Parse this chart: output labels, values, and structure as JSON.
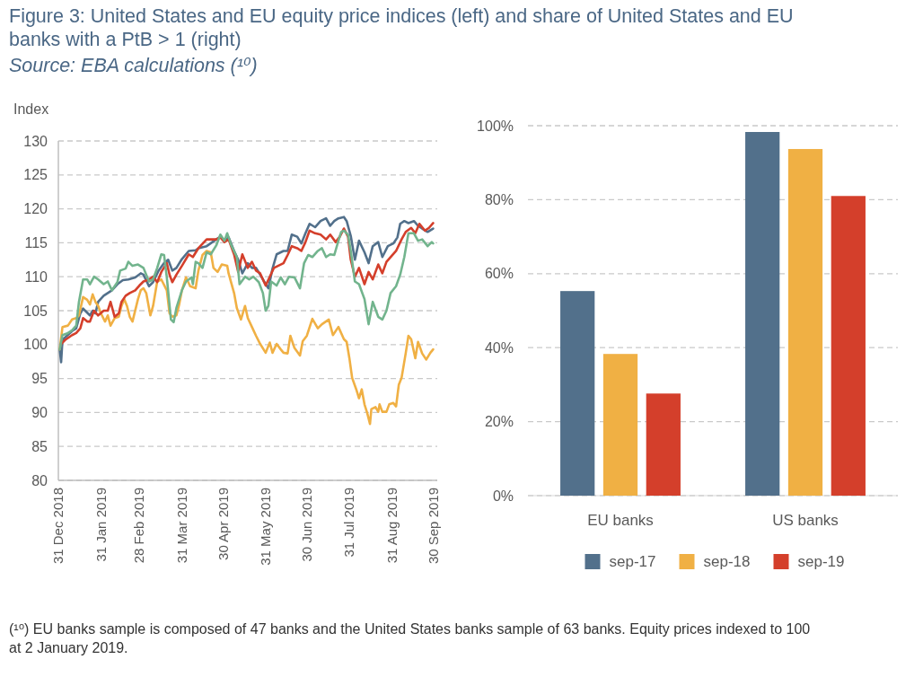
{
  "chart_data": [
    {
      "type": "line",
      "title": "Figure 3: United States and EU equity price indices (left) and share of United States and EU banks with a PtB > 1 (right)",
      "subtitle": "Source: EBA calculations (¹⁰)",
      "ylabel": "Index",
      "annotations": [
        "(¹⁰) EU banks sample is composed of 47 banks and the United States banks sample of 63 banks. Equity prices indexed to 100 at 2 January 2019."
      ],
      "xlim": [
        "2018-12-31",
        "2019-10-03"
      ],
      "xticks": [
        {
          "value": "2018-12-31",
          "label": "31 Dec 2018"
        },
        {
          "value": "2019-01-31",
          "label": "31 Jan 2019"
        },
        {
          "value": "2019-02-28",
          "label": "28 Feb 2019"
        },
        {
          "value": "2019-03-31",
          "label": "31 Mar 2019"
        },
        {
          "value": "2019-04-30",
          "label": "30 Apr 2019"
        },
        {
          "value": "2019-05-31",
          "label": "31 May 2019"
        },
        {
          "value": "2019-06-30",
          "label": "30 Jun 2019"
        },
        {
          "value": "2019-07-31",
          "label": "31 Jul 2019"
        },
        {
          "value": "2019-08-31",
          "label": "31 Aug 2019"
        },
        {
          "value": "2019-09-30",
          "label": "30 Sep 2019"
        }
      ],
      "ylim": [
        80,
        130
      ],
      "yticks": [
        80,
        85,
        90,
        95,
        100,
        105,
        110,
        115,
        120,
        125,
        130
      ],
      "grid": "y",
      "series": [
        {
          "color": "#52708b",
          "x": [
            "2019-01-01",
            "2019-01-02",
            "2019-01-03",
            "2019-01-10",
            "2019-01-13",
            "2019-01-16",
            "2019-01-18",
            "2019-01-21",
            "2019-01-23",
            "2019-01-25",
            "2019-01-27",
            "2019-01-29",
            "2019-02-02",
            "2019-02-05",
            "2019-02-08",
            "2019-02-12",
            "2019-02-16",
            "2019-02-20",
            "2019-02-25",
            "2019-03-01",
            "2019-03-03",
            "2019-03-07",
            "2019-03-10",
            "2019-03-14",
            "2019-03-18",
            "2019-03-21",
            "2019-03-24",
            "2019-03-27",
            "2019-03-31",
            "2019-04-05",
            "2019-04-10",
            "2019-04-12",
            "2019-04-18",
            "2019-04-25",
            "2019-04-28",
            "2019-05-01",
            "2019-05-04",
            "2019-05-08",
            "2019-05-11",
            "2019-05-14",
            "2019-05-18",
            "2019-05-21",
            "2019-05-24",
            "2019-05-27",
            "2019-05-31",
            "2019-06-02",
            "2019-06-05",
            "2019-06-08",
            "2019-06-13",
            "2019-06-16",
            "2019-06-19",
            "2019-06-23",
            "2019-06-26",
            "2019-06-29",
            "2019-07-02",
            "2019-07-06",
            "2019-07-10",
            "2019-07-14",
            "2019-07-17",
            "2019-07-20",
            "2019-07-23",
            "2019-07-27",
            "2019-07-29",
            "2019-08-01",
            "2019-08-04",
            "2019-08-07",
            "2019-08-11",
            "2019-08-14",
            "2019-08-17",
            "2019-08-21",
            "2019-08-24",
            "2019-08-28",
            "2019-09-01",
            "2019-09-04",
            "2019-09-06",
            "2019-09-09",
            "2019-09-12",
            "2019-09-16",
            "2019-09-19",
            "2019-09-22",
            "2019-09-26",
            "2019-09-30"
          ],
          "values": [
            99.3,
            97.4,
            100.7,
            102.0,
            102.4,
            104.6,
            105.3,
            104.7,
            104.3,
            105.0,
            104.6,
            106.3,
            107.2,
            107.6,
            108.0,
            108.9,
            109.5,
            109.6,
            109.9,
            110.5,
            110.3,
            108.6,
            109.2,
            110.9,
            112.0,
            112.5,
            110.9,
            111.3,
            112.6,
            113.8,
            113.9,
            114.2,
            114.5,
            115.5,
            115.9,
            115.3,
            115.8,
            113.8,
            112.5,
            110.5,
            112.0,
            111.3,
            111.3,
            110.3,
            108.9,
            108.3,
            111.2,
            113.3,
            113.8,
            113.8,
            116.2,
            115.9,
            114.9,
            116.4,
            117.8,
            117.3,
            118.2,
            118.6,
            117.5,
            118.2,
            118.6,
            118.8,
            118.2,
            116.0,
            112.5,
            115.3,
            113.6,
            112.0,
            114.5,
            115.1,
            112.9,
            114.5,
            114.9,
            115.8,
            117.8,
            118.2,
            117.9,
            118.2,
            117.5,
            117.1,
            116.6,
            117.1
          ]
        },
        {
          "color": "#f0b044",
          "x": [
            "2019-01-01",
            "2019-01-03",
            "2019-01-07",
            "2019-01-10",
            "2019-01-13",
            "2019-01-15",
            "2019-01-18",
            "2019-01-21",
            "2019-01-23",
            "2019-01-25",
            "2019-01-27",
            "2019-01-29",
            "2019-01-31",
            "2019-02-03",
            "2019-02-05",
            "2019-02-07",
            "2019-02-10",
            "2019-02-13",
            "2019-02-15",
            "2019-02-17",
            "2019-02-19",
            "2019-02-21",
            "2019-02-23",
            "2019-02-27",
            "2019-03-01",
            "2019-03-03",
            "2019-03-05",
            "2019-03-08",
            "2019-03-10",
            "2019-03-13",
            "2019-03-16",
            "2019-03-20",
            "2019-03-22",
            "2019-03-24",
            "2019-03-27",
            "2019-03-29",
            "2019-03-31",
            "2019-04-03",
            "2019-04-06",
            "2019-04-10",
            "2019-04-12",
            "2019-04-15",
            "2019-04-18",
            "2019-04-21",
            "2019-04-23",
            "2019-04-26",
            "2019-04-29",
            "2019-05-03",
            "2019-05-04",
            "2019-05-08",
            "2019-05-10",
            "2019-05-13",
            "2019-05-16",
            "2019-05-18",
            "2019-05-21",
            "2019-05-24",
            "2019-05-27",
            "2019-05-31",
            "2019-06-03",
            "2019-06-05",
            "2019-06-08",
            "2019-06-11",
            "2019-06-13",
            "2019-06-16",
            "2019-06-18",
            "2019-06-21",
            "2019-06-25",
            "2019-06-27",
            "2019-06-30",
            "2019-07-04",
            "2019-07-08",
            "2019-07-11",
            "2019-07-16",
            "2019-07-19",
            "2019-07-23",
            "2019-07-27",
            "2019-07-29",
            "2019-07-31",
            "2019-08-02",
            "2019-08-05",
            "2019-08-07",
            "2019-08-09",
            "2019-08-11",
            "2019-08-13",
            "2019-08-15",
            "2019-08-16",
            "2019-08-19",
            "2019-08-21",
            "2019-08-22",
            "2019-08-24",
            "2019-08-27",
            "2019-08-29",
            "2019-09-01",
            "2019-09-03",
            "2019-09-05",
            "2019-09-07",
            "2019-09-10",
            "2019-09-12",
            "2019-09-14",
            "2019-09-17",
            "2019-09-19",
            "2019-09-22",
            "2019-09-25",
            "2019-09-28",
            "2019-09-30"
          ],
          "values": [
            99.3,
            102.6,
            102.8,
            103.7,
            103.9,
            104.3,
            107.0,
            106.6,
            105.9,
            107.4,
            106.3,
            105.7,
            104.6,
            103.4,
            104.3,
            102.8,
            103.9,
            104.1,
            105.7,
            106.7,
            105.7,
            104.1,
            103.4,
            106.7,
            108.0,
            108.3,
            107.6,
            104.3,
            105.7,
            109.3,
            109.6,
            108.0,
            104.6,
            104.1,
            104.3,
            105.9,
            108.0,
            109.9,
            108.6,
            108.3,
            110.9,
            113.2,
            113.8,
            113.6,
            111.3,
            110.7,
            111.8,
            111.6,
            110.5,
            107.6,
            105.4,
            103.7,
            105.7,
            103.9,
            102.6,
            101.3,
            100.1,
            98.8,
            100.3,
            98.8,
            100.1,
            99.3,
            98.8,
            98.7,
            101.3,
            99.5,
            98.4,
            100.5,
            101.3,
            103.8,
            102.4,
            103.0,
            103.7,
            101.4,
            102.6,
            100.8,
            100.4,
            98.0,
            95.1,
            93.4,
            92.1,
            93.4,
            91.2,
            89.9,
            88.3,
            90.5,
            90.8,
            90.1,
            91.2,
            90.1,
            90.1,
            91.2,
            91.4,
            90.9,
            94.1,
            95.1,
            98.7,
            101.3,
            100.8,
            98.0,
            100.4,
            98.7,
            97.8,
            98.8,
            99.3
          ]
        },
        {
          "color": "#d43f2b",
          "x": [
            "2019-01-02",
            "2019-01-05",
            "2019-01-10",
            "2019-01-13",
            "2019-01-16",
            "2019-01-18",
            "2019-01-21",
            "2019-01-23",
            "2019-01-26",
            "2019-01-29",
            "2019-02-02",
            "2019-02-05",
            "2019-02-07",
            "2019-02-10",
            "2019-02-13",
            "2019-02-15",
            "2019-02-18",
            "2019-02-21",
            "2019-02-25",
            "2019-02-28",
            "2019-03-03",
            "2019-03-07",
            "2019-03-10",
            "2019-03-13",
            "2019-03-16",
            "2019-03-20",
            "2019-03-22",
            "2019-03-24",
            "2019-03-27",
            "2019-03-31",
            "2019-04-05",
            "2019-04-08",
            "2019-04-12",
            "2019-04-18",
            "2019-04-25",
            "2019-04-28",
            "2019-05-01",
            "2019-05-04",
            "2019-05-08",
            "2019-05-11",
            "2019-05-14",
            "2019-05-18",
            "2019-05-21",
            "2019-05-24",
            "2019-05-27",
            "2019-05-31",
            "2019-06-03",
            "2019-06-06",
            "2019-06-09",
            "2019-06-13",
            "2019-06-16",
            "2019-06-19",
            "2019-06-23",
            "2019-06-26",
            "2019-06-29",
            "2019-07-02",
            "2019-07-06",
            "2019-07-10",
            "2019-07-14",
            "2019-07-17",
            "2019-07-21",
            "2019-07-24",
            "2019-07-27",
            "2019-07-30",
            "2019-08-01",
            "2019-08-04",
            "2019-08-07",
            "2019-08-11",
            "2019-08-14",
            "2019-08-17",
            "2019-08-21",
            "2019-08-24",
            "2019-08-27",
            "2019-08-30",
            "2019-09-03",
            "2019-09-07",
            "2019-09-10",
            "2019-09-14",
            "2019-09-17",
            "2019-09-20",
            "2019-09-24",
            "2019-09-27",
            "2019-09-30"
          ],
          "values": [
            100.1,
            100.7,
            101.4,
            101.7,
            102.4,
            103.9,
            103.4,
            103.4,
            105.0,
            104.3,
            105.0,
            105.0,
            106.3,
            104.1,
            104.6,
            106.3,
            107.2,
            107.6,
            108.0,
            108.7,
            109.3,
            109.6,
            110.0,
            109.2,
            110.7,
            112.0,
            110.3,
            109.2,
            110.3,
            111.6,
            113.3,
            112.9,
            114.2,
            115.5,
            115.5,
            115.8,
            115.1,
            115.5,
            113.3,
            110.7,
            113.3,
            111.3,
            112.2,
            110.9,
            110.5,
            108.7,
            110.0,
            111.3,
            111.6,
            112.0,
            113.2,
            114.5,
            114.2,
            113.8,
            115.1,
            116.8,
            116.4,
            116.2,
            115.5,
            116.2,
            115.1,
            115.9,
            117.1,
            115.9,
            112.5,
            110.0,
            111.3,
            108.9,
            110.7,
            109.6,
            111.8,
            110.5,
            112.2,
            112.9,
            113.8,
            115.5,
            116.6,
            117.2,
            116.4,
            117.8,
            116.8,
            117.2,
            117.9
          ]
        },
        {
          "color": "#72b48d",
          "x": [
            "2019-01-01",
            "2019-01-03",
            "2019-01-07",
            "2019-01-10",
            "2019-01-13",
            "2019-01-15",
            "2019-01-18",
            "2019-01-21",
            "2019-01-23",
            "2019-01-26",
            "2019-01-29",
            "2019-02-02",
            "2019-02-05",
            "2019-02-08",
            "2019-02-12",
            "2019-02-14",
            "2019-02-18",
            "2019-02-20",
            "2019-02-23",
            "2019-02-27",
            "2019-03-03",
            "2019-03-07",
            "2019-03-10",
            "2019-03-13",
            "2019-03-16",
            "2019-03-18",
            "2019-03-20",
            "2019-03-23",
            "2019-03-25",
            "2019-03-27",
            "2019-03-31",
            "2019-04-03",
            "2019-04-07",
            "2019-04-08",
            "2019-04-10",
            "2019-04-12",
            "2019-04-15",
            "2019-04-18",
            "2019-04-21",
            "2019-04-25",
            "2019-04-28",
            "2019-05-01",
            "2019-05-03",
            "2019-05-06",
            "2019-05-10",
            "2019-05-12",
            "2019-05-16",
            "2019-05-19",
            "2019-05-22",
            "2019-05-26",
            "2019-05-29",
            "2019-05-31",
            "2019-06-02",
            "2019-06-04",
            "2019-06-08",
            "2019-06-11",
            "2019-06-14",
            "2019-06-17",
            "2019-06-21",
            "2019-06-25",
            "2019-06-28",
            "2019-07-01",
            "2019-07-04",
            "2019-07-08",
            "2019-07-11",
            "2019-07-14",
            "2019-07-17",
            "2019-07-20",
            "2019-07-23",
            "2019-07-25",
            "2019-07-27",
            "2019-07-30",
            "2019-08-01",
            "2019-08-04",
            "2019-08-07",
            "2019-08-11",
            "2019-08-14",
            "2019-08-17",
            "2019-08-21",
            "2019-08-24",
            "2019-08-27",
            "2019-08-30",
            "2019-09-03",
            "2019-09-06",
            "2019-09-09",
            "2019-09-12",
            "2019-09-16",
            "2019-09-19",
            "2019-09-22",
            "2019-09-26",
            "2019-09-29",
            "2019-09-30"
          ],
          "values": [
            99.3,
            101.4,
            101.7,
            102.1,
            102.8,
            106.3,
            109.6,
            109.6,
            108.9,
            110.0,
            109.6,
            108.9,
            109.3,
            108.0,
            109.2,
            110.9,
            111.2,
            112.2,
            111.6,
            111.8,
            111.3,
            109.3,
            109.6,
            111.3,
            113.3,
            113.2,
            109.9,
            103.7,
            103.3,
            105.4,
            108.0,
            109.3,
            109.9,
            108.9,
            112.2,
            112.0,
            111.3,
            113.6,
            113.3,
            114.6,
            116.2,
            115.3,
            116.4,
            114.6,
            112.9,
            108.9,
            110.0,
            109.6,
            110.0,
            109.2,
            107.6,
            105.0,
            105.7,
            109.3,
            108.7,
            109.9,
            108.9,
            110.0,
            109.9,
            108.3,
            112.0,
            113.2,
            112.9,
            113.8,
            114.2,
            112.9,
            113.3,
            113.2,
            115.3,
            116.6,
            116.8,
            116.2,
            113.8,
            109.3,
            108.9,
            106.7,
            103.0,
            106.3,
            104.1,
            103.7,
            105.0,
            107.6,
            108.6,
            110.3,
            112.9,
            116.4,
            116.4,
            115.3,
            115.5,
            114.5,
            115.1,
            114.9
          ]
        }
      ]
    },
    {
      "type": "bar",
      "categories": [
        "EU banks",
        "US banks"
      ],
      "series": [
        {
          "name": "sep-17",
          "color": "#52708b",
          "values": [
            55.3,
            98.3
          ]
        },
        {
          "name": "sep-18",
          "color": "#f0b044",
          "values": [
            38.3,
            93.7
          ]
        },
        {
          "name": "sep-19",
          "color": "#d43f2b",
          "values": [
            27.6,
            81.0
          ]
        }
      ],
      "ylim": [
        0,
        100
      ],
      "yticks": [
        {
          "value": 0,
          "label": "0%"
        },
        {
          "value": 20,
          "label": "20%"
        },
        {
          "value": 40,
          "label": "40%"
        },
        {
          "value": 60,
          "label": "60%"
        },
        {
          "value": 80,
          "label": "80%"
        },
        {
          "value": 100,
          "label": "100%"
        }
      ],
      "grid": "y",
      "legend": "bottom"
    }
  ]
}
